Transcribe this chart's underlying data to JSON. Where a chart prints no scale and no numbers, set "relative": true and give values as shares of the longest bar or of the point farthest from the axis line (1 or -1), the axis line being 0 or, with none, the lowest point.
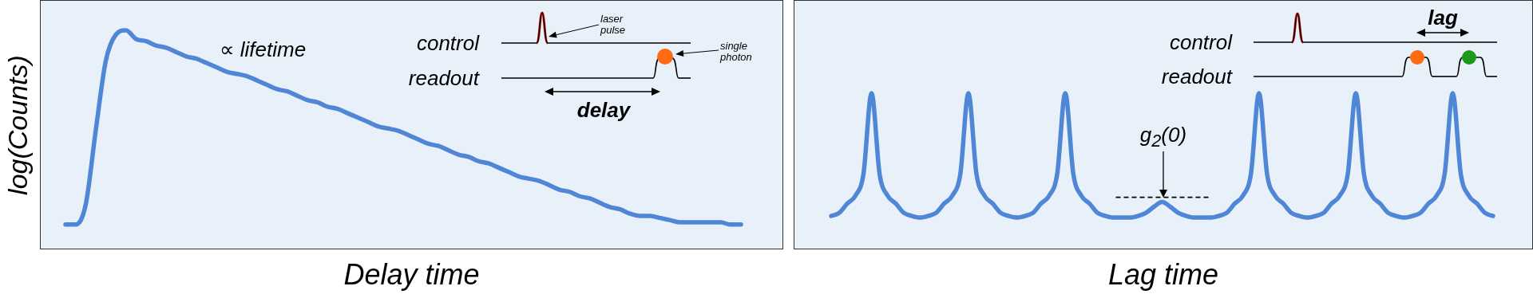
{
  "chart_data": [
    {
      "type": "line",
      "relative": true,
      "ylabel": "log(Counts)",
      "xlabel": "Delay time",
      "categories": [
        null,
        null,
        null,
        null,
        null,
        null,
        null,
        null,
        null,
        null,
        null,
        null,
        null,
        null,
        null,
        null,
        null,
        null,
        null,
        null,
        null,
        null,
        null,
        null,
        null,
        null,
        null,
        null,
        null,
        null,
        null,
        null,
        null,
        null,
        null,
        null,
        null,
        null,
        null,
        null,
        null,
        null,
        null,
        null,
        null,
        null,
        null,
        null,
        null,
        null,
        null,
        null,
        null,
        null,
        null,
        null,
        null,
        null,
        null,
        null,
        null,
        null,
        null,
        null,
        null,
        null,
        null,
        null
      ],
      "series": [
        {
          "color": "#4f86d6",
          "values": [
            0.11,
            0.11,
            0.2,
            0.54,
            0.86,
            0.98,
            1,
            0.96,
            0.95,
            0.93,
            0.92,
            0.9,
            0.88,
            0.87,
            0.85,
            0.83,
            0.81,
            0.8,
            0.79,
            0.77,
            0.75,
            0.73,
            0.72,
            0.7,
            0.68,
            0.67,
            0.65,
            0.64,
            0.62,
            0.6,
            0.58,
            0.56,
            0.55,
            0.54,
            0.52,
            0.5,
            0.48,
            0.47,
            0.45,
            0.43,
            0.42,
            0.4,
            0.39,
            0.37,
            0.35,
            0.33,
            0.32,
            0.31,
            0.29,
            0.27,
            0.26,
            0.24,
            0.23,
            0.21,
            0.19,
            0.18,
            0.16,
            0.15,
            0.15,
            0.14,
            0.13,
            0.12,
            0.12,
            0.12,
            0.12,
            0.12,
            0.11,
            0.11
          ]
        }
      ],
      "annotations": [
        "∝ lifetime",
        "control",
        "readout",
        "laser pulse",
        "single photon",
        "delay"
      ]
    },
    {
      "type": "line",
      "relative": true,
      "xlabel": "Lag time",
      "categories": [
        null,
        null,
        null,
        null,
        null,
        null,
        null,
        null,
        null,
        null,
        null,
        null,
        null,
        null,
        null,
        null,
        null,
        null,
        null,
        null,
        null,
        null,
        null,
        null,
        null,
        null,
        null,
        null,
        null,
        null,
        null,
        null,
        null,
        null,
        null,
        null,
        null,
        null,
        null,
        null,
        null,
        null,
        null,
        null,
        null,
        null,
        null,
        null,
        null,
        null,
        null,
        null,
        null,
        null,
        null,
        null,
        null,
        null,
        null,
        null,
        null,
        null,
        null,
        null,
        null,
        null,
        null,
        null,
        null,
        null,
        null,
        null,
        null,
        null,
        null,
        null,
        null,
        null,
        null,
        null,
        null,
        null,
        null
      ],
      "series": [
        {
          "color": "#4f86d6",
          "values": [
            0.21,
            0.23,
            0.29,
            0.34,
            0.48,
            1,
            0.48,
            0.34,
            0.29,
            0.23,
            0.21,
            0.2,
            0.21,
            0.23,
            0.29,
            0.34,
            0.48,
            1,
            0.48,
            0.34,
            0.29,
            0.23,
            0.21,
            0.2,
            0.21,
            0.23,
            0.29,
            0.34,
            0.48,
            1,
            0.48,
            0.34,
            0.29,
            0.23,
            0.21,
            0.2,
            0.2,
            0.2,
            0.21,
            0.23,
            0.27,
            0.3,
            0.27,
            0.23,
            0.21,
            0.2,
            0.2,
            0.2,
            0.21,
            0.23,
            0.29,
            0.34,
            0.48,
            1,
            0.48,
            0.34,
            0.29,
            0.23,
            0.21,
            0.2,
            0.21,
            0.23,
            0.29,
            0.34,
            0.48,
            1,
            0.48,
            0.34,
            0.29,
            0.23,
            0.21,
            0.2,
            0.21,
            0.23,
            0.29,
            0.34,
            0.48,
            1,
            0.48,
            0.34,
            0.29,
            0.23,
            0.21
          ]
        }
      ],
      "ref_lines": [
        {
          "axis": "y",
          "value": 0.33,
          "color": "#000000",
          "line_style": "dashed"
        }
      ],
      "annotations": [
        "control",
        "readout",
        "lag",
        {
          "text": "g$_{2}$(0)",
          "y": 0.33
        }
      ]
    }
  ]
}
